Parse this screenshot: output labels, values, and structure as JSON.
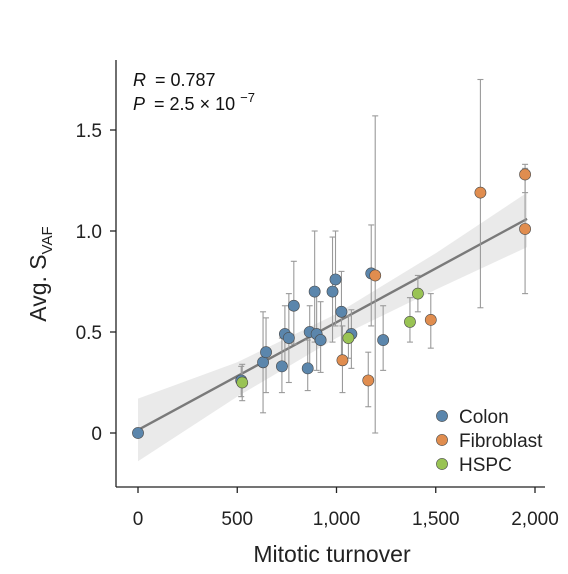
{
  "chart_data": {
    "type": "scatter",
    "xlabel": "Mitotic turnover",
    "ylabel": {
      "main": "Avg. S",
      "sub": "VAF"
    },
    "xlim": [
      -60,
      2020
    ],
    "ylim": [
      -0.13,
      1.85
    ],
    "x_ticks": [
      0,
      500,
      1000,
      1500,
      2000
    ],
    "x_tick_labels": [
      "0",
      "500",
      "1,000",
      "1,500",
      "2,000"
    ],
    "y_ticks": [
      0,
      0.5,
      1.0,
      1.5
    ],
    "y_tick_labels": [
      "0",
      "0.5",
      "1.0",
      "1.5"
    ],
    "stats": {
      "r_label": "R",
      "r_value": "= 0.787",
      "p_label": "P",
      "p_value": "= 2.5 × 10",
      "p_exponent": "−7"
    },
    "legend_position": "bottom-right",
    "series": [
      {
        "name": "Colon",
        "color": "#5b86ac",
        "points": [
          {
            "x": 0,
            "y": 0,
            "lo": 0,
            "hi": 0
          },
          {
            "x": 520,
            "y": 0.26,
            "lo": 0.18,
            "hi": 0.33
          },
          {
            "x": 630,
            "y": 0.35,
            "lo": 0.1,
            "hi": 0.6
          },
          {
            "x": 645,
            "y": 0.4,
            "lo": 0.2,
            "hi": 0.57
          },
          {
            "x": 725,
            "y": 0.33,
            "lo": 0.2,
            "hi": 0.47
          },
          {
            "x": 740,
            "y": 0.49,
            "lo": 0.33,
            "hi": 0.63
          },
          {
            "x": 760,
            "y": 0.47,
            "lo": 0.25,
            "hi": 0.69
          },
          {
            "x": 785,
            "y": 0.63,
            "lo": 0.44,
            "hi": 0.85
          },
          {
            "x": 855,
            "y": 0.32,
            "lo": 0.21,
            "hi": 0.46
          },
          {
            "x": 865,
            "y": 0.5,
            "lo": 0.33,
            "hi": 0.63
          },
          {
            "x": 890,
            "y": 0.7,
            "lo": 0.45,
            "hi": 1.0
          },
          {
            "x": 900,
            "y": 0.49,
            "lo": 0.31,
            "hi": 0.69
          },
          {
            "x": 920,
            "y": 0.46,
            "lo": 0.3,
            "hi": 0.65
          },
          {
            "x": 980,
            "y": 0.7,
            "lo": 0.45,
            "hi": 0.97
          },
          {
            "x": 995,
            "y": 0.76,
            "lo": 0.53,
            "hi": 1.0
          },
          {
            "x": 1025,
            "y": 0.6,
            "lo": 0.38,
            "hi": 0.8
          },
          {
            "x": 1075,
            "y": 0.49,
            "lo": 0.32,
            "hi": 0.61
          },
          {
            "x": 1175,
            "y": 0.79,
            "lo": 0.53,
            "hi": 1.03
          },
          {
            "x": 1235,
            "y": 0.46,
            "lo": 0.31,
            "hi": 0.63
          }
        ]
      },
      {
        "name": "Fibroblast",
        "color": "#e08d4f",
        "points": [
          {
            "x": 1030,
            "y": 0.36,
            "lo": 0.2,
            "hi": 0.53
          },
          {
            "x": 1160,
            "y": 0.26,
            "lo": 0.13,
            "hi": 0.4
          },
          {
            "x": 1195,
            "y": 0.78,
            "lo": 0.0,
            "hi": 1.57
          },
          {
            "x": 1475,
            "y": 0.56,
            "lo": 0.42,
            "hi": 0.69
          },
          {
            "x": 1725,
            "y": 1.19,
            "lo": 0.62,
            "hi": 1.75
          },
          {
            "x": 1950,
            "y": 1.28,
            "lo": 1.19,
            "hi": 1.33
          },
          {
            "x": 1950,
            "y": 1.01,
            "lo": 0.69,
            "hi": 1.31
          }
        ]
      },
      {
        "name": "HSPC",
        "color": "#99c354",
        "points": [
          {
            "x": 525,
            "y": 0.25,
            "lo": 0.16,
            "hi": 0.34
          },
          {
            "x": 1060,
            "y": 0.47,
            "lo": 0.37,
            "hi": 0.58
          },
          {
            "x": 1370,
            "y": 0.55,
            "lo": 0.45,
            "hi": 0.67
          },
          {
            "x": 1410,
            "y": 0.69,
            "lo": 0.6,
            "hi": 0.78
          }
        ]
      }
    ],
    "regression": {
      "from": [
        0,
        0.015
      ],
      "to": [
        1960,
        1.06
      ],
      "band": [
        {
          "x": 0,
          "lo": -0.14,
          "hi": 0.17
        },
        {
          "x": 500,
          "lo": 0.18,
          "hi": 0.35
        },
        {
          "x": 1000,
          "lo": 0.47,
          "hi": 0.59
        },
        {
          "x": 1500,
          "lo": 0.71,
          "hi": 0.89
        },
        {
          "x": 1960,
          "lo": 0.92,
          "hi": 1.19
        }
      ],
      "line_color": "#7a7a7a",
      "band_color": "#e6e6e6"
    }
  }
}
